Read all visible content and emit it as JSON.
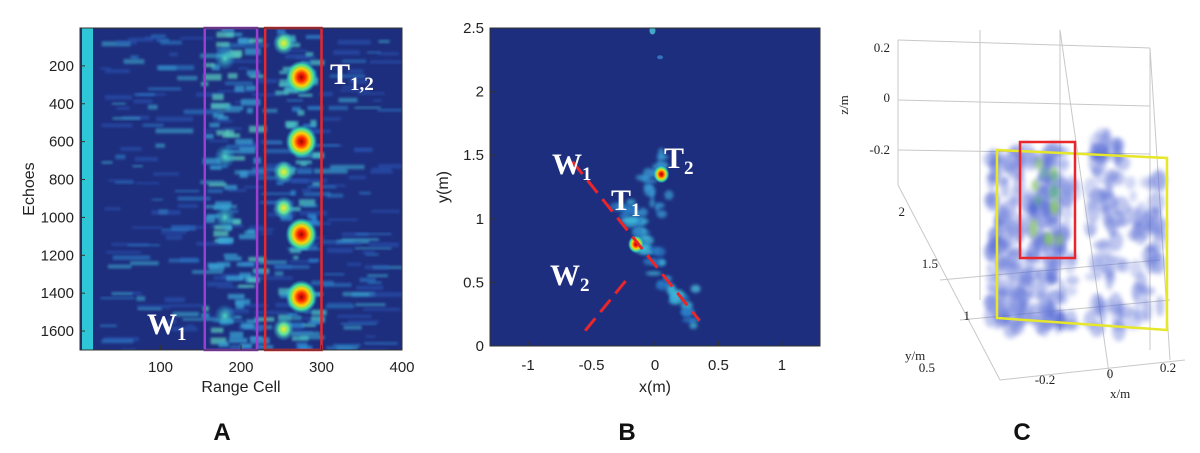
{
  "chart_data": [
    {
      "panel": "A",
      "type": "heatmap",
      "xlabel": "Range Cell",
      "ylabel": "Echoes",
      "xlim": [
        0,
        400
      ],
      "ylim": [
        1700,
        0
      ],
      "x_ticks": [
        "100",
        "200",
        "300",
        "400"
      ],
      "y_ticks": [
        "200",
        "400",
        "600",
        "800",
        "1000",
        "1200",
        "1400",
        "1600"
      ],
      "annotations": [
        {
          "label": "W",
          "sub": "1",
          "box_color": "#9b3fd0",
          "range_x": [
            155,
            220
          ]
        },
        {
          "label": "T",
          "sub": "1,2",
          "box_color": "#e8262b",
          "range_x": [
            230,
            300
          ]
        }
      ],
      "hotspots": [
        {
          "x": 275,
          "y": 260,
          "level": 1.0
        },
        {
          "x": 275,
          "y": 600,
          "level": 1.0
        },
        {
          "x": 275,
          "y": 1090,
          "level": 1.0
        },
        {
          "x": 275,
          "y": 1420,
          "level": 1.0
        },
        {
          "x": 253,
          "y": 80,
          "level": 0.6
        },
        {
          "x": 253,
          "y": 760,
          "level": 0.6
        },
        {
          "x": 253,
          "y": 950,
          "level": 0.6
        },
        {
          "x": 253,
          "y": 1590,
          "level": 0.6
        },
        {
          "x": 180,
          "y": 160,
          "level": 0.55
        },
        {
          "x": 180,
          "y": 680,
          "level": 0.55
        },
        {
          "x": 180,
          "y": 1000,
          "level": 0.55
        },
        {
          "x": 180,
          "y": 1520,
          "level": 0.55
        }
      ]
    },
    {
      "panel": "B",
      "type": "heatmap",
      "xlabel": "x(m)",
      "ylabel": "y(m)",
      "xlim": [
        -1.3,
        1.3
      ],
      "ylim": [
        0,
        2.5
      ],
      "x_ticks": [
        "-1",
        "-0.5",
        "0",
        "0.5",
        "1"
      ],
      "y_ticks": [
        "0",
        "0.5",
        "1",
        "1.5",
        "2",
        "2.5"
      ],
      "annotations": [
        {
          "label": "W",
          "sub": "1"
        },
        {
          "label": "W",
          "sub": "2"
        },
        {
          "label": "T",
          "sub": "1"
        },
        {
          "label": "T",
          "sub": "2"
        }
      ],
      "wall_lines": [
        {
          "from": [
            -0.65,
            1.45
          ],
          "to": [
            0.35,
            0.2
          ]
        },
        {
          "from": [
            -0.55,
            0.12
          ],
          "to": [
            -0.2,
            0.55
          ]
        }
      ],
      "targets": [
        {
          "name": "T1",
          "x": -0.15,
          "y": 0.8
        },
        {
          "name": "T2",
          "x": 0.05,
          "y": 1.35
        }
      ]
    },
    {
      "panel": "C",
      "type": "3d-volume",
      "xlabel": "x/m",
      "ylabel": "y/m",
      "zlabel": "z/m",
      "x_ticks": [
        "-0.2",
        "0",
        "0.2"
      ],
      "y_ticks": [
        "0.5",
        "1",
        "1.5",
        "2"
      ],
      "z_ticks": [
        "0.2",
        "0",
        "-0.2"
      ],
      "annotations": [
        {
          "box_color": "#e8262b"
        },
        {
          "box_color": "#e6e62a"
        }
      ]
    }
  ],
  "panel_labels": [
    "A",
    "B",
    "C"
  ],
  "colors": {
    "jet_background": "#1e2e7e",
    "purple_box": "#9b3fd0",
    "red_box": "#e8262b",
    "yellow_box": "#e6e62a",
    "dash_line": "#e8262b"
  }
}
